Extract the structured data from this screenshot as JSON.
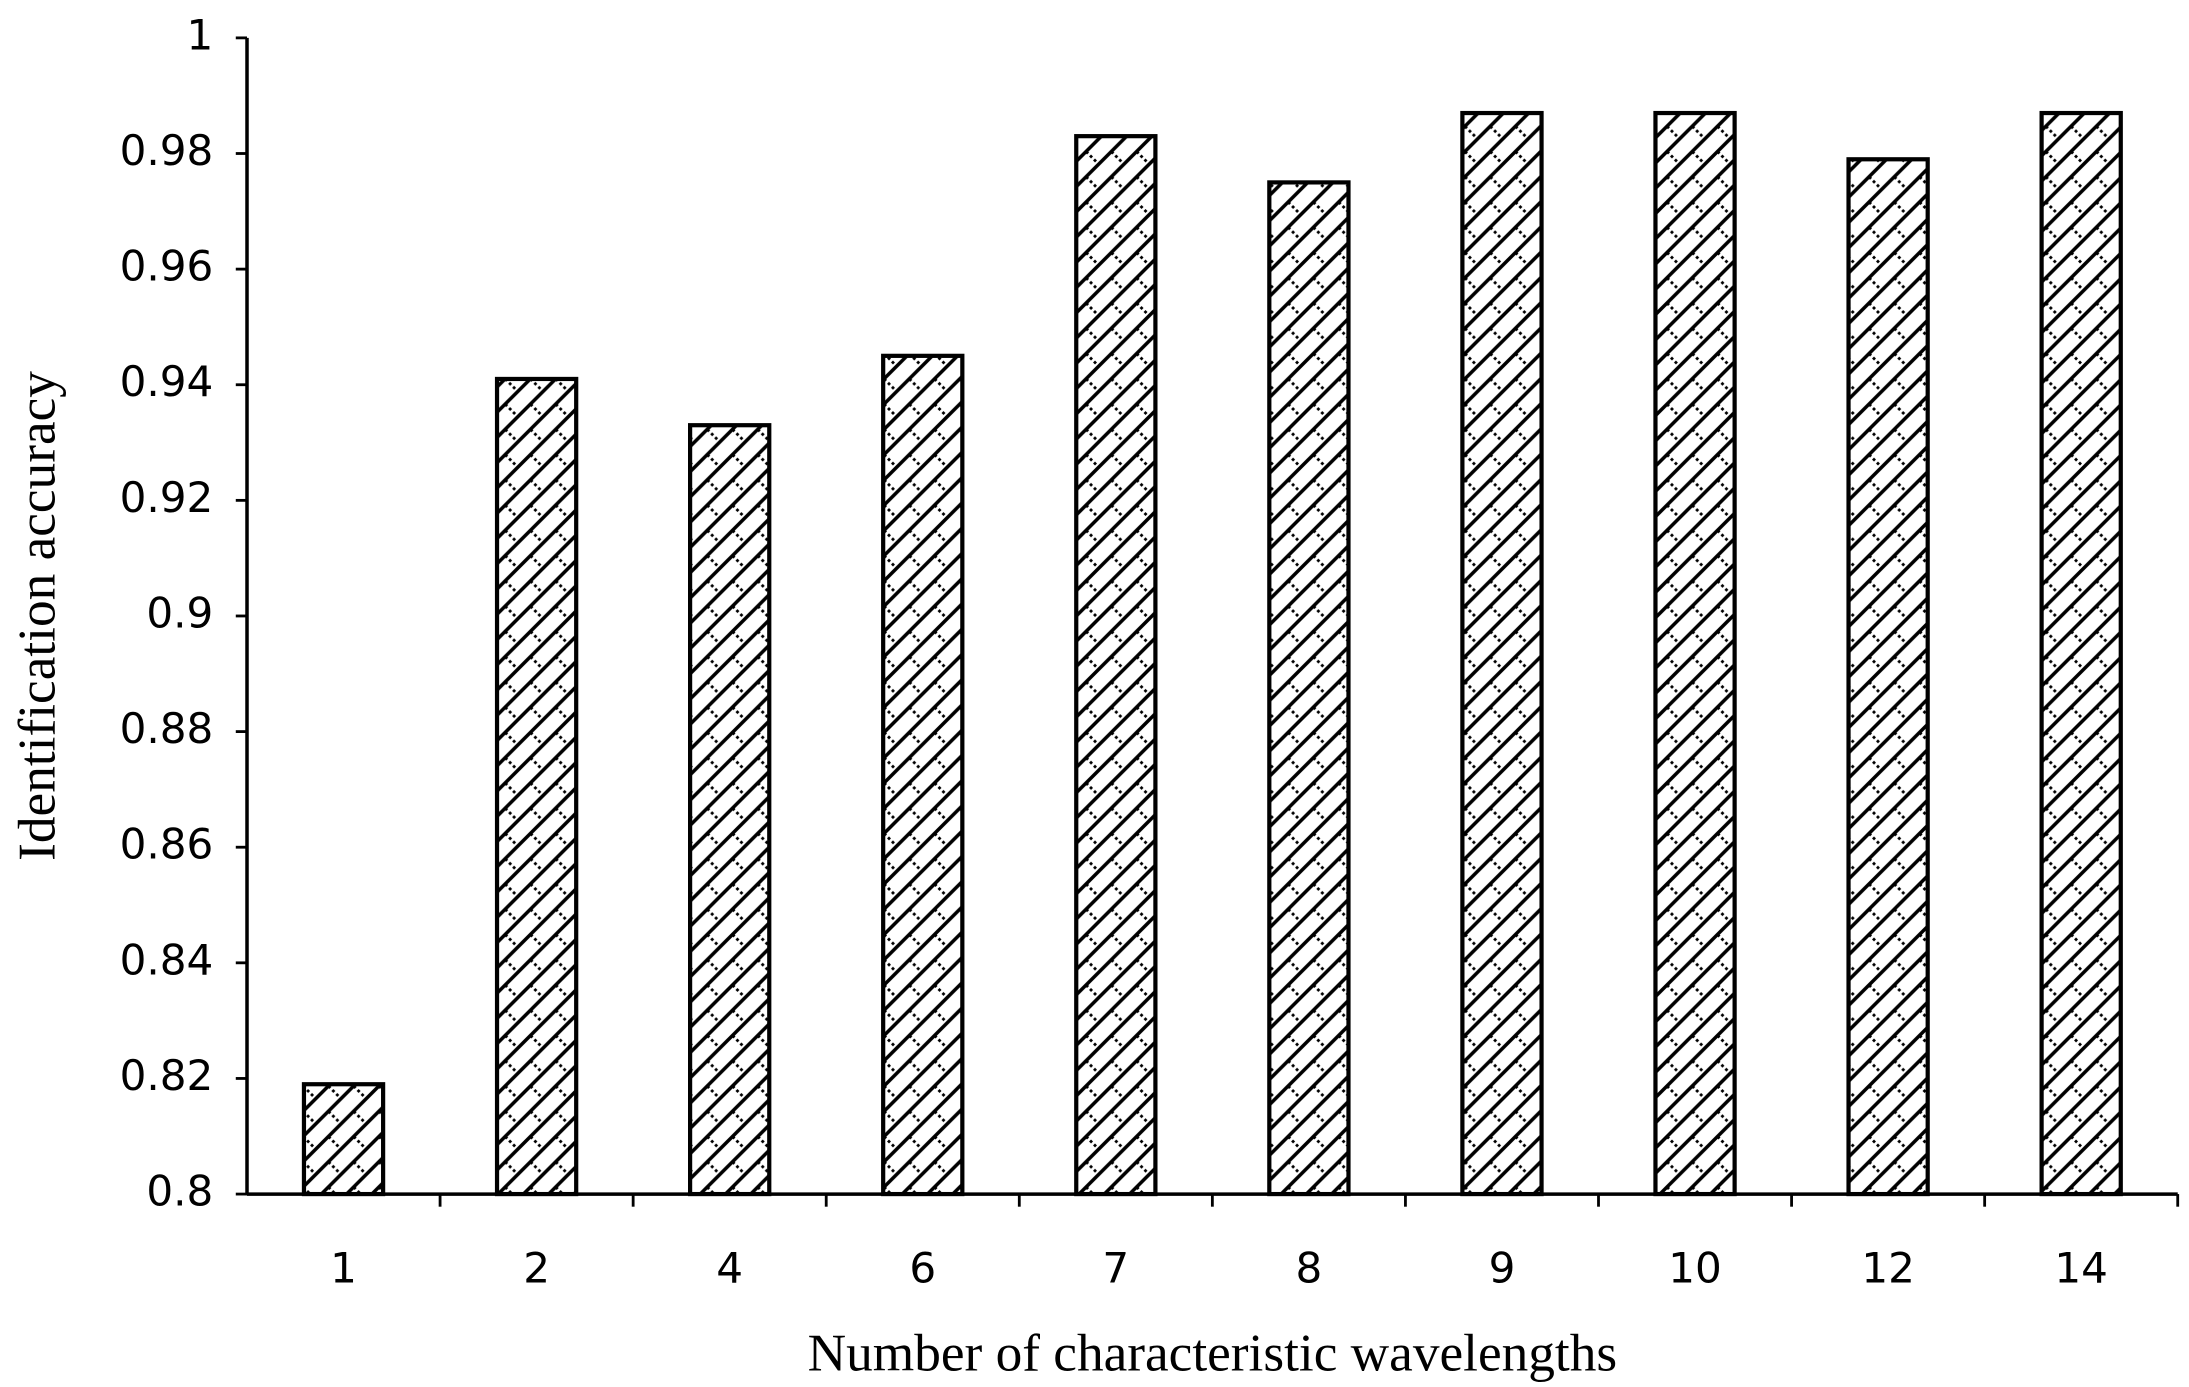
{
  "chart_data": {
    "type": "bar",
    "x_label": "Number of characteristic wavelengths",
    "y_label": "Identification accuracy",
    "categories": [
      "1",
      "2",
      "4",
      "6",
      "7",
      "8",
      "9",
      "10",
      "12",
      "14"
    ],
    "values": [
      0.819,
      0.941,
      0.933,
      0.945,
      0.983,
      0.975,
      0.987,
      0.987,
      0.979,
      0.987
    ],
    "color": "#000000",
    "ylim": [
      0.8,
      1
    ],
    "yticks": [
      0.8,
      0.82,
      0.84,
      0.86,
      0.88,
      0.9,
      0.92,
      0.94,
      0.96,
      0.98,
      1
    ],
    "grid": false
  }
}
